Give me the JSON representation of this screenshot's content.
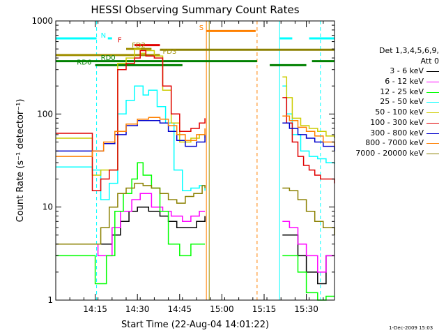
{
  "colors": {
    "black": "#000000",
    "magenta": "#ff00ff",
    "green": "#00ff00",
    "cyan": "#00ffff",
    "yellow": "#cccc00",
    "red": "#e00000",
    "blue": "#0000cc",
    "orange": "#ff8000",
    "olive": "#8b8000",
    "darkgreen": "#008000",
    "fd": "#a08f00"
  },
  "legend": {
    "header": [
      "Det 1,3,4,5,6,9,",
      "Att 0"
    ],
    "entries": [
      {
        "label": "3 - 6 keV",
        "color": "#000000"
      },
      {
        "label": "6 - 12 keV",
        "color": "#ff00ff"
      },
      {
        "label": "12 - 25 keV",
        "color": "#00ff00"
      },
      {
        "label": "25 - 50 keV",
        "color": "#00ffff"
      },
      {
        "label": "50 - 100 keV",
        "color": "#cccc00"
      },
      {
        "label": "100 - 300 keV",
        "color": "#e00000"
      },
      {
        "label": "300 - 800 keV",
        "color": "#0000cc"
      },
      {
        "label": "800 - 7000 keV",
        "color": "#ff8000"
      },
      {
        "label": "7000 - 20000 keV",
        "color": "#8b8000"
      }
    ]
  },
  "footer_stamp": "1-Dec-2009 15:03",
  "chart_data": {
    "type": "line",
    "title": "HESSI Observing Summary Count Rates",
    "xlabel": "Start Time (22-Aug-04 14:01:22)",
    "ylabel": "Count Rate (s⁻¹ detector⁻¹)",
    "y_log": true,
    "xlim": [
      0,
      99
    ],
    "ylim": [
      1,
      1000
    ],
    "x_ticks": [
      {
        "value": 14,
        "label": "14:15"
      },
      {
        "value": 29,
        "label": "14:30"
      },
      {
        "value": 44,
        "label": "14:45"
      },
      {
        "value": 59,
        "label": "15:00"
      },
      {
        "value": 74,
        "label": "15:15"
      },
      {
        "value": 89,
        "label": "15:30"
      }
    ],
    "y_ticks": [
      {
        "value": 1,
        "label": "1"
      },
      {
        "value": 10,
        "label": "10"
      },
      {
        "value": 100,
        "label": "100"
      },
      {
        "value": 1000,
        "label": "1000"
      }
    ],
    "gaps": [
      [
        54,
        78
      ],
      [
        79,
        80.5
      ]
    ],
    "series": [
      {
        "color": "#000000",
        "points": [
          [
            0,
            4
          ],
          [
            8,
            4
          ],
          [
            15,
            4
          ],
          [
            20,
            5
          ],
          [
            23,
            7
          ],
          [
            26,
            9
          ],
          [
            29,
            10
          ],
          [
            33,
            9
          ],
          [
            37,
            8
          ],
          [
            40,
            7
          ],
          [
            43,
            6
          ],
          [
            47,
            6
          ],
          [
            50,
            7
          ],
          [
            53,
            8
          ],
          [
            80.5,
            5
          ],
          [
            83,
            5
          ],
          [
            86,
            3
          ],
          [
            89,
            2
          ],
          [
            93,
            1.5
          ],
          [
            96,
            3
          ],
          [
            99,
            3
          ]
        ]
      },
      {
        "color": "#ff00ff",
        "points": [
          [
            0,
            4
          ],
          [
            8,
            4
          ],
          [
            15,
            3
          ],
          [
            20,
            6
          ],
          [
            23,
            9
          ],
          [
            27,
            12
          ],
          [
            30,
            14
          ],
          [
            34,
            10
          ],
          [
            38,
            9
          ],
          [
            41,
            8
          ],
          [
            45,
            7
          ],
          [
            48,
            8
          ],
          [
            51,
            9
          ],
          [
            53,
            9
          ],
          [
            80.5,
            7
          ],
          [
            83,
            6
          ],
          [
            86,
            4
          ],
          [
            89,
            3
          ],
          [
            93,
            2
          ],
          [
            96,
            3
          ],
          [
            99,
            3
          ]
        ]
      },
      {
        "color": "#00ff00",
        "points": [
          [
            0,
            3
          ],
          [
            8,
            3
          ],
          [
            14,
            1.5
          ],
          [
            18,
            3
          ],
          [
            21,
            9
          ],
          [
            24,
            14
          ],
          [
            27,
            20
          ],
          [
            29,
            30
          ],
          [
            31,
            22
          ],
          [
            34,
            16
          ],
          [
            37,
            9
          ],
          [
            40,
            4
          ],
          [
            44,
            3
          ],
          [
            48,
            4
          ],
          [
            51,
            4
          ],
          [
            53,
            4
          ],
          [
            80.5,
            3
          ],
          [
            83,
            3
          ],
          [
            86,
            2
          ],
          [
            89,
            1.2
          ],
          [
            93,
            1
          ],
          [
            96,
            1.1
          ],
          [
            99,
            1.1
          ]
        ]
      },
      {
        "color": "#00ffff",
        "points": [
          [
            0,
            27
          ],
          [
            8,
            27
          ],
          [
            13,
            25
          ],
          [
            16,
            12
          ],
          [
            19,
            18
          ],
          [
            22,
            100
          ],
          [
            25,
            140
          ],
          [
            28,
            200
          ],
          [
            31,
            160
          ],
          [
            33,
            180
          ],
          [
            36,
            120
          ],
          [
            39,
            80
          ],
          [
            42,
            25
          ],
          [
            45,
            15
          ],
          [
            48,
            16
          ],
          [
            51,
            17
          ],
          [
            53,
            15
          ],
          [
            80.5,
            200
          ],
          [
            82,
            100
          ],
          [
            84,
            60
          ],
          [
            87,
            40
          ],
          [
            90,
            35
          ],
          [
            93,
            33
          ],
          [
            96,
            30
          ],
          [
            99,
            29
          ]
        ]
      },
      {
        "color": "#cccc00",
        "points": [
          [
            0,
            55
          ],
          [
            8,
            55
          ],
          [
            13,
            22
          ],
          [
            16,
            25
          ],
          [
            19,
            25
          ],
          [
            22,
            350
          ],
          [
            25,
            400
          ],
          [
            28,
            500
          ],
          [
            30,
            450
          ],
          [
            32,
            480
          ],
          [
            35,
            420
          ],
          [
            38,
            180
          ],
          [
            41,
            80
          ],
          [
            44,
            50
          ],
          [
            48,
            55
          ],
          [
            51,
            60
          ],
          [
            53,
            55
          ],
          [
            80.5,
            250
          ],
          [
            82,
            150
          ],
          [
            84,
            90
          ],
          [
            87,
            75
          ],
          [
            90,
            70
          ],
          [
            93,
            65
          ],
          [
            96,
            58
          ],
          [
            99,
            55
          ]
        ]
      },
      {
        "color": "#e00000",
        "points": [
          [
            0,
            62
          ],
          [
            8,
            62
          ],
          [
            13,
            15
          ],
          [
            16,
            20
          ],
          [
            19,
            25
          ],
          [
            22,
            300
          ],
          [
            25,
            350
          ],
          [
            28,
            400
          ],
          [
            30,
            480
          ],
          [
            32,
            420
          ],
          [
            35,
            400
          ],
          [
            38,
            200
          ],
          [
            41,
            100
          ],
          [
            44,
            65
          ],
          [
            48,
            70
          ],
          [
            51,
            80
          ],
          [
            53,
            90
          ],
          [
            80.5,
            150
          ],
          [
            82,
            80
          ],
          [
            84,
            50
          ],
          [
            86,
            35
          ],
          [
            88,
            28
          ],
          [
            90,
            25
          ],
          [
            92,
            22
          ],
          [
            94,
            20
          ],
          [
            96,
            20
          ],
          [
            99,
            18
          ]
        ]
      },
      {
        "color": "#0000cc",
        "points": [
          [
            0,
            40
          ],
          [
            8,
            40
          ],
          [
            13,
            40
          ],
          [
            17,
            48
          ],
          [
            21,
            60
          ],
          [
            25,
            75
          ],
          [
            29,
            85
          ],
          [
            33,
            85
          ],
          [
            37,
            80
          ],
          [
            40,
            65
          ],
          [
            43,
            52
          ],
          [
            46,
            45
          ],
          [
            50,
            50
          ],
          [
            53,
            60
          ],
          [
            80.5,
            80
          ],
          [
            83,
            70
          ],
          [
            86,
            60
          ],
          [
            89,
            55
          ],
          [
            92,
            50
          ],
          [
            95,
            45
          ],
          [
            99,
            40
          ]
        ]
      },
      {
        "color": "#ff8000",
        "points": [
          [
            0,
            35
          ],
          [
            8,
            35
          ],
          [
            13,
            40
          ],
          [
            17,
            50
          ],
          [
            21,
            65
          ],
          [
            25,
            78
          ],
          [
            29,
            88
          ],
          [
            33,
            92
          ],
          [
            37,
            88
          ],
          [
            40,
            75
          ],
          [
            43,
            60
          ],
          [
            46,
            52
          ],
          [
            50,
            60
          ],
          [
            53,
            70
          ],
          [
            80.5,
            95
          ],
          [
            83,
            85
          ],
          [
            86,
            72
          ],
          [
            89,
            65
          ],
          [
            92,
            58
          ],
          [
            95,
            50
          ],
          [
            99,
            45
          ]
        ]
      },
      {
        "color": "#8b8000",
        "points": [
          [
            0,
            4
          ],
          [
            8,
            4
          ],
          [
            13,
            4
          ],
          [
            16,
            6
          ],
          [
            19,
            10
          ],
          [
            22,
            14
          ],
          [
            25,
            16
          ],
          [
            28,
            18
          ],
          [
            31,
            17
          ],
          [
            34,
            16
          ],
          [
            37,
            14
          ],
          [
            40,
            12
          ],
          [
            43,
            11
          ],
          [
            46,
            13
          ],
          [
            49,
            14
          ],
          [
            52,
            17
          ],
          [
            53,
            16
          ],
          [
            80.5,
            16
          ],
          [
            83,
            15
          ],
          [
            86,
            12
          ],
          [
            89,
            9
          ],
          [
            92,
            7
          ],
          [
            95,
            6
          ],
          [
            99,
            5
          ]
        ]
      }
    ],
    "annotations": [
      {
        "text": "N",
        "color": "#00ffff",
        "y": 650,
        "segments": [
          [
            0,
            14.5
          ],
          [
            18.5,
            20
          ],
          [
            79.5,
            84
          ],
          [
            90,
            99
          ]
        ]
      },
      {
        "text": "F",
        "color": "#e00000",
        "y": 550,
        "segments": [
          [
            28,
            37
          ]
        ]
      },
      {
        "text": "FD2",
        "color": "#a08f00",
        "y": 500,
        "segments": [
          [
            25,
            34
          ]
        ]
      },
      {
        "text": "FD3",
        "color": "#a08f00",
        "y": 430,
        "segments": [
          [
            0,
            37
          ]
        ]
      },
      {
        "text": "S",
        "color": "#ff8000",
        "y": 780,
        "segments": [
          [
            53.5,
            71
          ]
        ]
      },
      {
        "text": "RD0",
        "color": "#008000",
        "y": 370,
        "segments": [
          [
            0,
            71.5
          ],
          [
            91,
            99
          ]
        ]
      },
      {
        "text": "RD6",
        "color": "#008000",
        "y": 335,
        "segments": [
          [
            14,
            45
          ],
          [
            76,
            89
          ]
        ]
      }
    ],
    "olive_line": {
      "y": 490,
      "segments": [
        [
          37,
          99
        ]
      ]
    },
    "vlines": [
      {
        "x": 14.5,
        "color": "#00ffff",
        "dashed": true
      },
      {
        "x": 53.5,
        "color": "#ff8000",
        "dashed": false
      },
      {
        "x": 54.5,
        "color": "#a08f00",
        "dashed": false
      },
      {
        "x": 71.5,
        "color": "#ff8000",
        "dashed": true
      },
      {
        "x": 79.5,
        "color": "#00ffff",
        "dashed": false
      },
      {
        "x": 94,
        "color": "#00ffff",
        "dashed": true
      }
    ]
  }
}
